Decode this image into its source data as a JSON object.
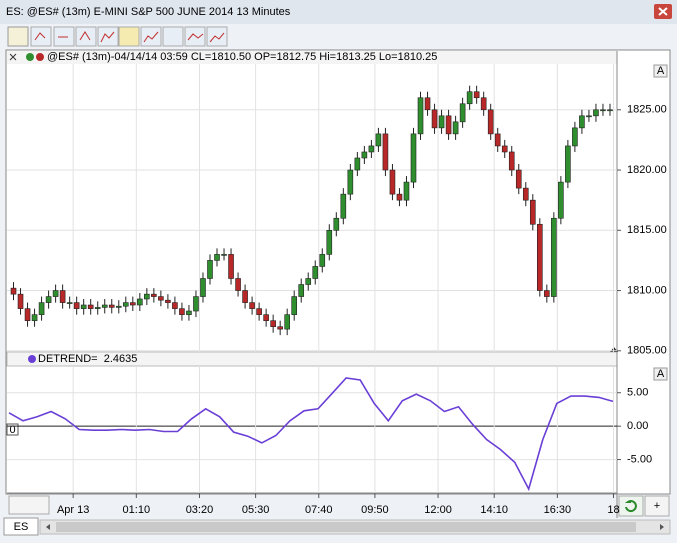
{
  "window": {
    "title": "ES: @ES# (13m) E-MINI S&P 500 JUNE 2014 13 Minutes"
  },
  "ui": {
    "tab": "ES",
    "autoscale": [
      "A",
      "A"
    ],
    "zero_marker": "0",
    "add_button": "+"
  },
  "chart_data": [
    {
      "type": "candlestick",
      "legend": "@ES# (13m)-04/14/14 03:59 CL=1810.50 OP=1812.75 Hi=1813.25 Lo=1810.25",
      "up_color": "#2f8f2f",
      "down_color": "#b82828",
      "grid": true,
      "ylim": [
        1804.9,
        1828.8
      ],
      "yticks": [
        {
          "value": 1805,
          "label": "1805.00"
        },
        {
          "value": 1810,
          "label": "1810.00"
        },
        {
          "value": 1815,
          "label": "1815.00"
        },
        {
          "value": 1820,
          "label": "1820.00"
        },
        {
          "value": 1825,
          "label": "1825.00"
        }
      ],
      "xlim": [
        0,
        86.5
      ],
      "xticks": [
        {
          "value": 9,
          "label": "Apr 13"
        },
        {
          "value": 18,
          "label": "01:10"
        },
        {
          "value": 27,
          "label": "03:20"
        },
        {
          "value": 35,
          "label": "05:30"
        },
        {
          "value": 44,
          "label": "07:40"
        },
        {
          "value": 52,
          "label": "09:50"
        },
        {
          "value": 61,
          "label": "12:00"
        },
        {
          "value": 69,
          "label": "14:10"
        },
        {
          "value": 78,
          "label": "16:30"
        },
        {
          "value": 86,
          "label": "18"
        }
      ],
      "open": [
        1810.2,
        1809.7,
        1808.5,
        1807.5,
        1808,
        1809,
        1809.5,
        1810,
        1809,
        1809,
        1808.5,
        1808.8,
        1808.5,
        1808.6,
        1808.8,
        1808.6,
        1808.7,
        1809,
        1808.8,
        1809.3,
        1809.7,
        1809.5,
        1809.2,
        1809,
        1808.5,
        1808,
        1808.3,
        1809.5,
        1811,
        1812.5,
        1813,
        1813,
        1811,
        1810,
        1809,
        1808.5,
        1808,
        1807.5,
        1807,
        1806.8,
        1808,
        1809.5,
        1810.5,
        1811,
        1812,
        1813,
        1815,
        1816,
        1818,
        1820,
        1821,
        1821.5,
        1822,
        1823,
        1820,
        1818,
        1817.5,
        1819,
        1823,
        1826,
        1825,
        1823.5,
        1824.5,
        1823,
        1824,
        1825.5,
        1826.5,
        1826,
        1825,
        1823,
        1822,
        1821.5,
        1820,
        1818.5,
        1817.5,
        1815.5,
        1810,
        1809.5,
        1816,
        1819,
        1822,
        1823.5,
        1824.5,
        1824.5,
        1825,
        1825
      ],
      "high": [
        1810.7,
        1810.2,
        1809,
        1808.5,
        1809.5,
        1810,
        1810.5,
        1810.5,
        1809.5,
        1809.5,
        1809.3,
        1809.3,
        1809.1,
        1809.3,
        1809.3,
        1809.2,
        1809.5,
        1809.5,
        1809.8,
        1810.2,
        1810.2,
        1810,
        1809.7,
        1809.5,
        1809,
        1808.8,
        1810,
        1811.5,
        1813,
        1813.5,
        1813.5,
        1813.5,
        1811.5,
        1810.5,
        1809.5,
        1809,
        1808.5,
        1808,
        1807.5,
        1808.5,
        1810,
        1811,
        1811.5,
        1812.5,
        1813.5,
        1815.5,
        1816.5,
        1818.5,
        1820.5,
        1821.5,
        1822,
        1822.5,
        1823.5,
        1823.5,
        1820.5,
        1818.5,
        1819.5,
        1823.5,
        1826.5,
        1826.5,
        1825.5,
        1825,
        1825,
        1824.5,
        1826,
        1827,
        1827,
        1826.5,
        1825.5,
        1823.5,
        1822.5,
        1822,
        1820.5,
        1819,
        1818,
        1816,
        1810.5,
        1816.5,
        1819.5,
        1822.5,
        1824,
        1825,
        1825,
        1825.5,
        1825.5,
        1825.5
      ],
      "low": [
        1809.2,
        1808,
        1807,
        1807,
        1807.5,
        1808.5,
        1809,
        1808.5,
        1808.5,
        1808,
        1808,
        1808,
        1808,
        1808.1,
        1808.1,
        1808.1,
        1808.2,
        1808.3,
        1808.3,
        1808.8,
        1809,
        1808.7,
        1808.5,
        1808,
        1807.5,
        1807.5,
        1807.8,
        1809,
        1810.5,
        1812,
        1812.5,
        1810.5,
        1809.5,
        1808.5,
        1808,
        1807.5,
        1807,
        1806.5,
        1806.3,
        1806.3,
        1807.5,
        1809,
        1810,
        1810.5,
        1811.5,
        1812.5,
        1814.5,
        1815.5,
        1817.5,
        1819.5,
        1820.5,
        1821,
        1821.5,
        1819.5,
        1817.5,
        1817,
        1817,
        1818.5,
        1822.5,
        1824.5,
        1823,
        1823,
        1822.5,
        1822.5,
        1823.5,
        1825,
        1825.5,
        1824.5,
        1822.5,
        1821.5,
        1821,
        1819.5,
        1818,
        1817,
        1815,
        1809.5,
        1809,
        1809,
        1815.5,
        1818.5,
        1821.5,
        1823,
        1824,
        1824,
        1824.5,
        1824.5
      ],
      "close": [
        1809.7,
        1808.5,
        1807.5,
        1808,
        1809,
        1809.5,
        1810,
        1809,
        1809,
        1808.5,
        1808.8,
        1808.5,
        1808.6,
        1808.8,
        1808.6,
        1808.7,
        1809,
        1808.8,
        1809.3,
        1809.7,
        1809.5,
        1809.2,
        1809,
        1808.5,
        1808,
        1808.3,
        1809.5,
        1811,
        1812.5,
        1813,
        1813,
        1811,
        1810,
        1809,
        1808.5,
        1808,
        1807.5,
        1807,
        1806.8,
        1808,
        1809.5,
        1810.5,
        1811,
        1812,
        1813,
        1815,
        1816,
        1818,
        1820,
        1821,
        1821.5,
        1822,
        1823,
        1820,
        1818,
        1817.5,
        1819,
        1823,
        1826,
        1825,
        1823.5,
        1824.5,
        1823,
        1824,
        1825.5,
        1826.5,
        1826,
        1825,
        1823,
        1822,
        1821.5,
        1820,
        1818.5,
        1817.5,
        1815.5,
        1810,
        1809.5,
        1816,
        1819,
        1822,
        1823.5,
        1824.5,
        1824.5,
        1825,
        1825,
        1825
      ]
    },
    {
      "type": "line",
      "legend": "DETREND=  2.4635",
      "color": "#6a3fd6",
      "grid": true,
      "ylim": [
        -10,
        9
      ],
      "yticks": [
        {
          "value": 5,
          "label": "5.00"
        },
        {
          "value": 0,
          "label": "0.00"
        },
        {
          "value": -5,
          "label": "-5.00"
        }
      ],
      "values": [
        2.0,
        0.8,
        1.4,
        2.2,
        1.1,
        -0.5,
        -0.6,
        -0.6,
        -0.5,
        -0.6,
        -0.5,
        -0.8,
        -0.8,
        1.1,
        2.6,
        1.4,
        -0.9,
        -1.5,
        -2.5,
        -1.4,
        0.8,
        2.3,
        2.6,
        4.9,
        7.2,
        6.9,
        3.4,
        0.8,
        3.8,
        4.8,
        3.8,
        2.2,
        2.9,
        0.3,
        -2.0,
        -3.5,
        -5.4,
        -9.4,
        -2.0,
        3.4,
        4.5,
        4.5,
        4.3,
        3.7
      ]
    }
  ]
}
